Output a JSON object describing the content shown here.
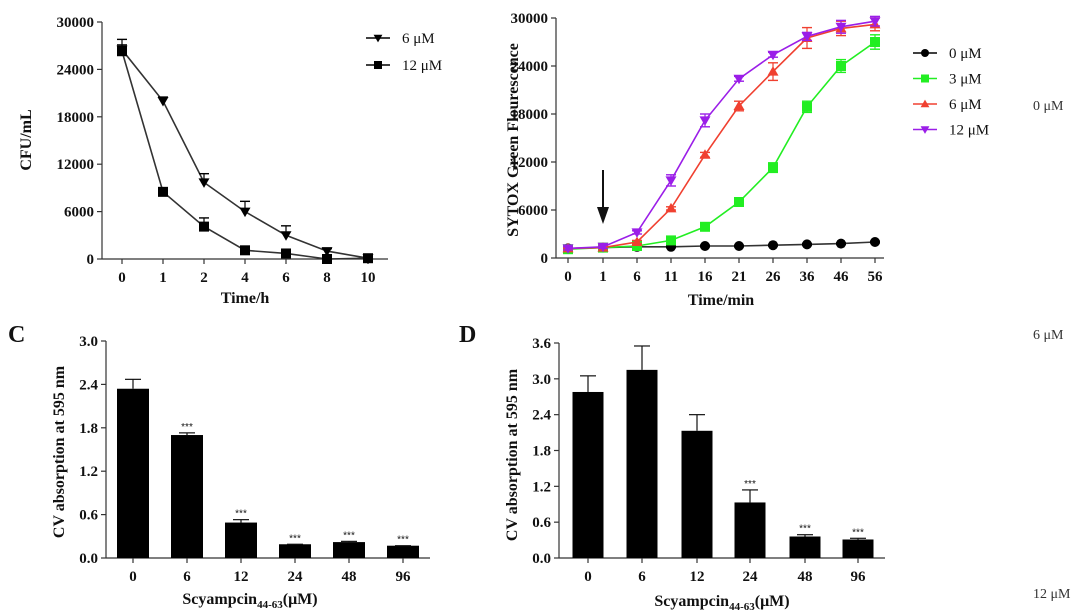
{
  "stray_labels": [
    "0 μM",
    "6 μM",
    "12 μM"
  ],
  "chart_data": [
    {
      "id": "A",
      "type": "line",
      "title": "",
      "panel_label": "",
      "xlabel": "Time/h",
      "ylabel": "CFU/mL",
      "categories": [
        "0",
        "1",
        "2",
        "4",
        "6",
        "8",
        "10"
      ],
      "ylim": [
        0,
        30000
      ],
      "yticks": [
        0,
        6000,
        12000,
        18000,
        24000,
        30000
      ],
      "yticklabels": [
        "0",
        "6000",
        "12000",
        "18000",
        "24000",
        "30000"
      ],
      "legend_position": "top-right",
      "series": [
        {
          "name": "6 μM",
          "marker": "triangle-down",
          "color": "#000000",
          "values": [
            26500,
            20000,
            9700,
            6000,
            3000,
            1000,
            100
          ],
          "errors": [
            1300,
            500,
            1100,
            1300,
            1200,
            300,
            100
          ]
        },
        {
          "name": "12 μM",
          "marker": "square",
          "color": "#000000",
          "values": [
            26300,
            8500,
            4100,
            1100,
            700,
            0,
            100
          ],
          "errors": [
            800,
            300,
            1100,
            200,
            200,
            0,
            100
          ]
        }
      ]
    },
    {
      "id": "B",
      "type": "line",
      "title": "",
      "panel_label": "",
      "xlabel": "Time/min",
      "ylabel": "SYTOX Green Flourescence",
      "categories": [
        "0",
        "1",
        "6",
        "11",
        "16",
        "21",
        "26",
        "36",
        "46",
        "56"
      ],
      "ylim": [
        0,
        30000
      ],
      "yticks": [
        0,
        6000,
        12000,
        18000,
        24000,
        30000
      ],
      "yticklabels": [
        "0",
        "6000",
        "12000",
        "18000",
        "24000",
        "30000"
      ],
      "annotation": {
        "type": "arrow-down",
        "at_category": "1",
        "label": ""
      },
      "legend_position": "right",
      "series": [
        {
          "name": "0 μM",
          "marker": "circle",
          "color": "#000000",
          "values": [
            1200,
            1300,
            1400,
            1400,
            1500,
            1500,
            1600,
            1700,
            1800,
            2000
          ],
          "errors": [
            100,
            100,
            100,
            100,
            100,
            100,
            100,
            100,
            100,
            100
          ]
        },
        {
          "name": "3 μM",
          "marker": "square",
          "color": "#22ee22",
          "values": [
            1100,
            1300,
            1500,
            2200,
            3900,
            7000,
            11300,
            18900,
            24000,
            27000
          ],
          "errors": [
            200,
            200,
            200,
            300,
            300,
            300,
            600,
            700,
            800,
            900
          ]
        },
        {
          "name": "6 μM",
          "marker": "triangle-up",
          "color": "#f04030",
          "values": [
            1200,
            1300,
            2000,
            6200,
            12900,
            19000,
            23300,
            27500,
            28700,
            29200
          ],
          "errors": [
            100,
            100,
            200,
            200,
            300,
            600,
            1100,
            1300,
            900,
            800
          ]
        },
        {
          "name": "12 μM",
          "marker": "triangle-down",
          "color": "#9b1ee8",
          "values": [
            1200,
            1400,
            3200,
            9700,
            17200,
            22400,
            25400,
            27700,
            28900,
            29600
          ],
          "errors": [
            200,
            200,
            200,
            700,
            800,
            300,
            300,
            500,
            800,
            600
          ]
        }
      ]
    },
    {
      "id": "C",
      "type": "bar",
      "title": "",
      "panel_label": "C",
      "xlabel_main": "Scyampcin",
      "xlabel_sub": "44-63",
      "xlabel_unit": "(μM)",
      "ylabel": "CV absorption at 595 nm",
      "categories": [
        "0",
        "6",
        "12",
        "24",
        "48",
        "96"
      ],
      "values": [
        2.34,
        1.7,
        0.49,
        0.19,
        0.22,
        0.17
      ],
      "errors": [
        0.13,
        0.03,
        0.04,
        0.0,
        0.01,
        0.0
      ],
      "significance": [
        "",
        "***",
        "***",
        "***",
        "***",
        "***"
      ],
      "ylim": [
        0,
        3.0
      ],
      "yticks": [
        0,
        0.6,
        1.2,
        1.8,
        2.4,
        3.0
      ],
      "yticklabels": [
        "0.0",
        "0.6",
        "1.2",
        "1.8",
        "2.4",
        "3.0"
      ],
      "bar_color": "#000000"
    },
    {
      "id": "D",
      "type": "bar",
      "title": "",
      "panel_label": "D",
      "xlabel_main": "Scyampcin",
      "xlabel_sub": "44-63",
      "xlabel_unit": "(μM)",
      "ylabel": "CV absorption at 595 nm",
      "categories": [
        "0",
        "6",
        "12",
        "24",
        "48",
        "96"
      ],
      "values": [
        2.78,
        3.15,
        2.13,
        0.93,
        0.36,
        0.31
      ],
      "errors": [
        0.27,
        0.4,
        0.27,
        0.21,
        0.03,
        0.02
      ],
      "significance": [
        "",
        "",
        "",
        "***",
        "***",
        "***"
      ],
      "ylim": [
        0,
        3.6
      ],
      "yticks": [
        0,
        0.6,
        1.2,
        1.8,
        2.4,
        3.0,
        3.6
      ],
      "yticklabels": [
        "0.0",
        "0.6",
        "1.2",
        "1.8",
        "2.4",
        "3.0",
        "3.6"
      ],
      "bar_color": "#000000"
    }
  ]
}
